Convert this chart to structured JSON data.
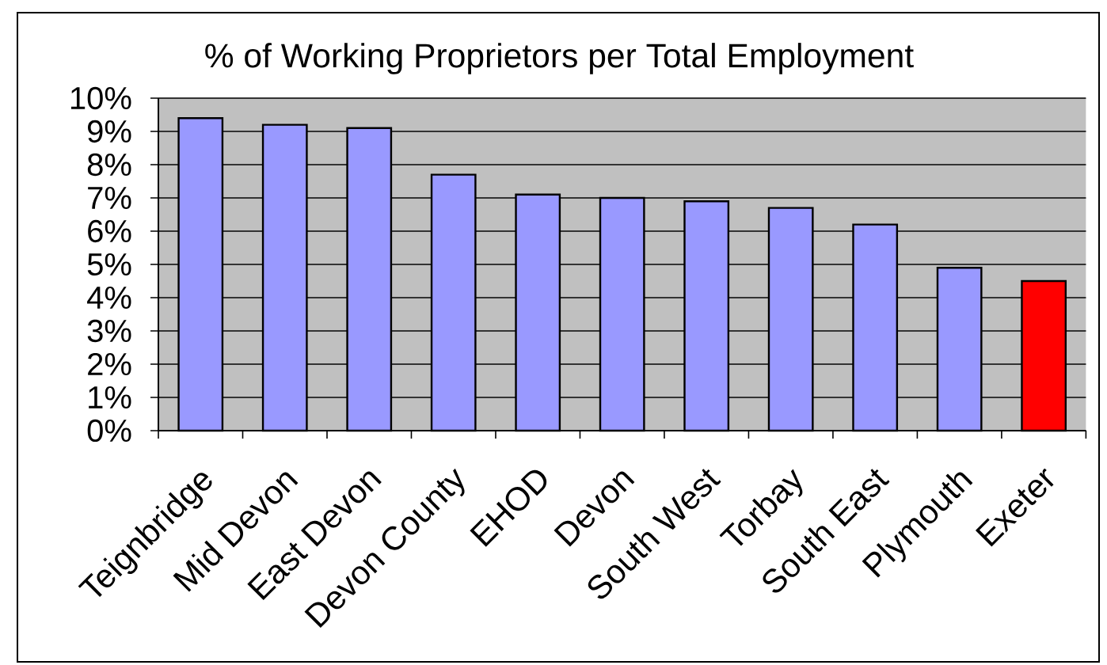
{
  "chart_data": {
    "type": "bar",
    "title": "% of Working Proprietors per Total Employment",
    "categories": [
      "Teignbridge",
      "Mid Devon",
      "East Devon",
      "Devon County",
      "EHOD",
      "Devon",
      "South West",
      "Torbay",
      "South East",
      "Plymouth",
      "Exeter"
    ],
    "values": [
      9.4,
      9.2,
      9.1,
      7.7,
      7.1,
      7.0,
      6.9,
      6.7,
      6.2,
      4.9,
      4.5
    ],
    "colors": [
      "#9999ff",
      "#9999ff",
      "#9999ff",
      "#9999ff",
      "#9999ff",
      "#9999ff",
      "#9999ff",
      "#9999ff",
      "#9999ff",
      "#9999ff",
      "#ff0000"
    ],
    "ylim": [
      0,
      10
    ],
    "yticks": [
      {
        "value": 0,
        "label": "0%"
      },
      {
        "value": 1,
        "label": "1%"
      },
      {
        "value": 2,
        "label": "2%"
      },
      {
        "value": 3,
        "label": "3%"
      },
      {
        "value": 4,
        "label": "4%"
      },
      {
        "value": 5,
        "label": "5%"
      },
      {
        "value": 6,
        "label": "6%"
      },
      {
        "value": 7,
        "label": "7%"
      },
      {
        "value": 8,
        "label": "8%"
      },
      {
        "value": 9,
        "label": "9%"
      },
      {
        "value": 10,
        "label": "10%"
      }
    ],
    "grid": "y"
  }
}
